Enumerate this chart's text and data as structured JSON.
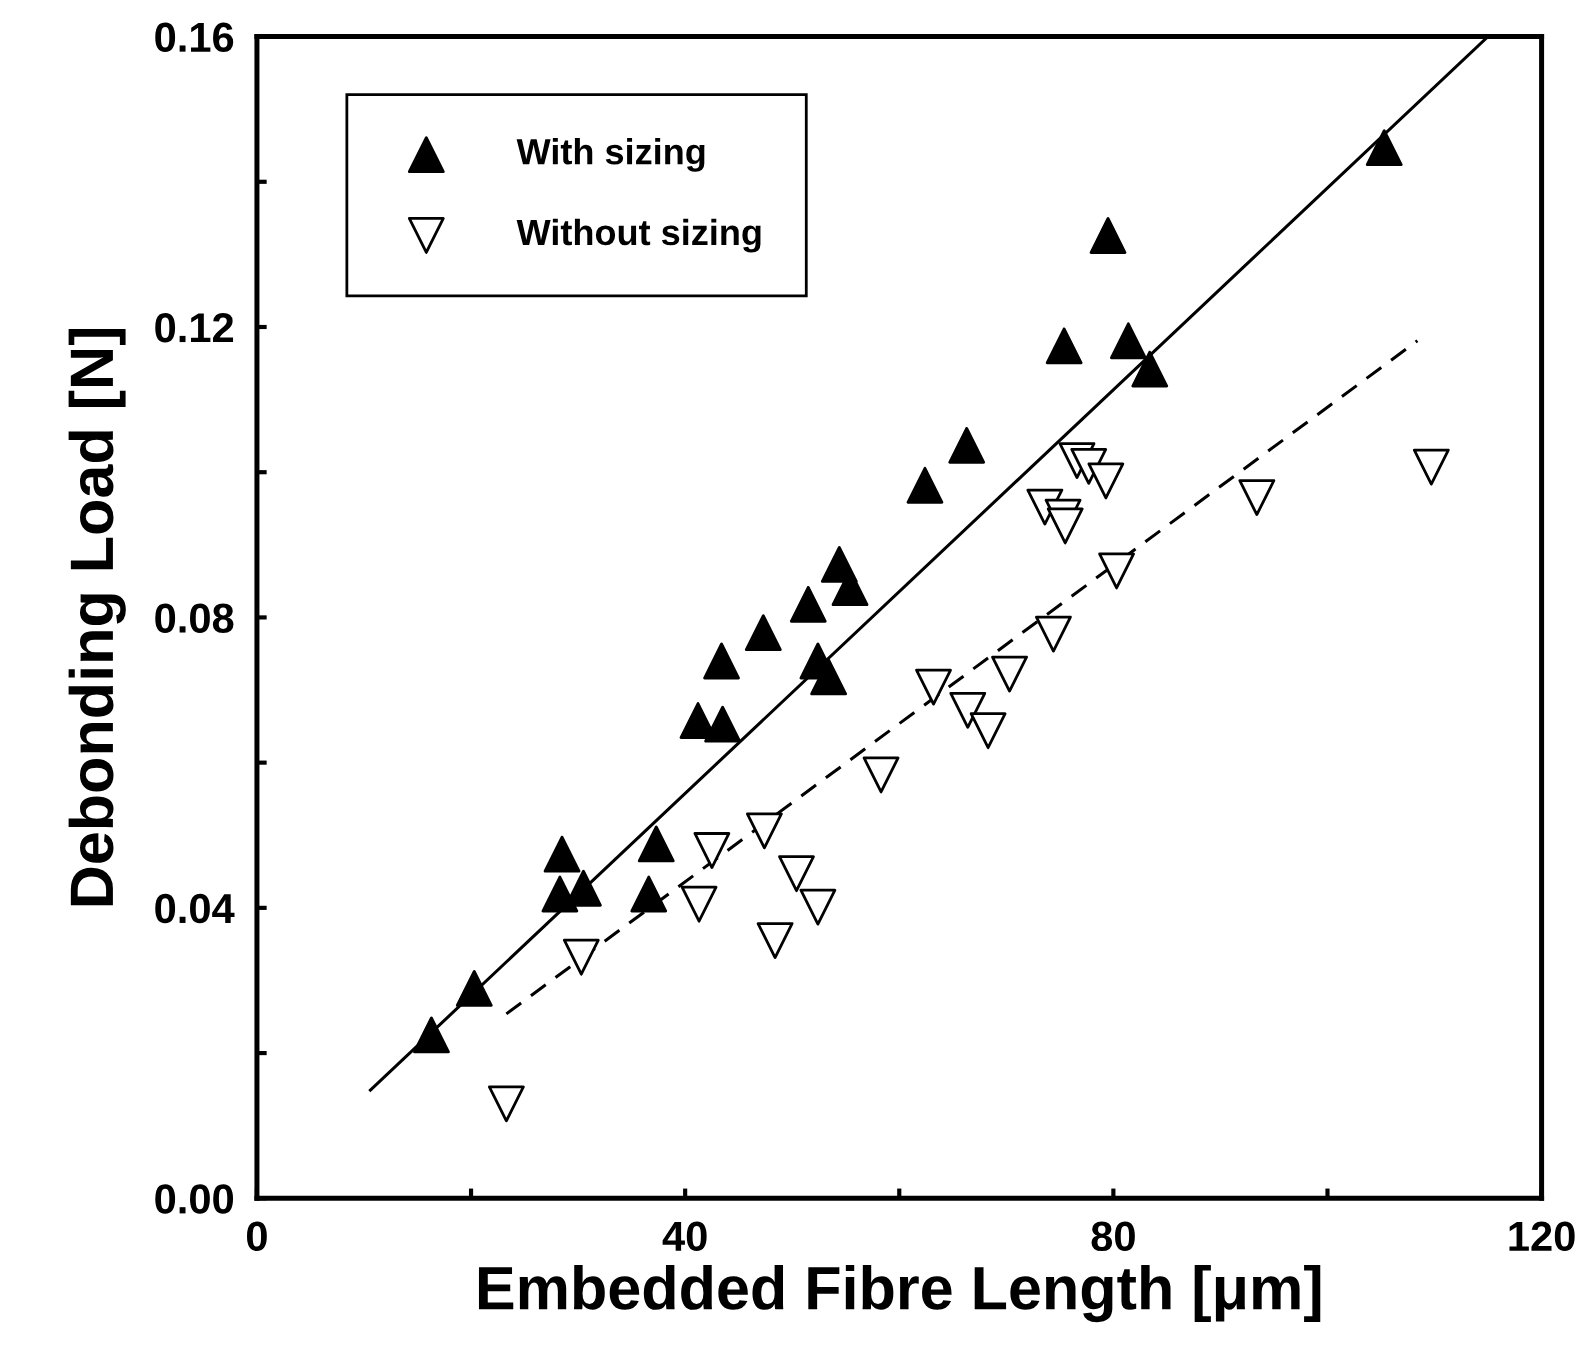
{
  "chart_data": {
    "type": "scatter",
    "xlabel": "Embedded Fibre Length [μm]",
    "ylabel": "Debonding Load [N]",
    "xlim": [
      0,
      120
    ],
    "ylim": [
      0,
      0.16
    ],
    "xticks": [
      0,
      {
        "value": 20,
        "label": null
      },
      40,
      {
        "value": 60,
        "label": null
      },
      80,
      {
        "value": 100,
        "label": null
      },
      120
    ],
    "yticks": [
      {
        "value": 0,
        "label": "0.00"
      },
      {
        "value": 0.02,
        "label": null
      },
      0.04,
      {
        "value": 0.06,
        "label": null
      },
      0.08,
      {
        "value": 0.1,
        "label": null
      },
      0.12,
      {
        "value": 0.14,
        "label": null
      },
      0.16
    ],
    "grid": false,
    "legend": "top left",
    "series": [
      {
        "name": "With sizing",
        "color": "#000000",
        "marker": "triangle",
        "x": [
          16.3,
          20.3,
          28.5,
          28.3,
          30.5,
          36.6,
          37.3,
          41.2,
          43.4,
          43.5,
          47.3,
          51.5,
          52.4,
          53.4,
          54.4,
          55.4,
          62.4,
          66.3,
          75.4,
          79.5,
          81.4,
          83.4,
          105.3
        ],
        "values": [
          0.0225,
          0.0289,
          0.0474,
          0.0419,
          0.0427,
          0.0419,
          0.0488,
          0.0658,
          0.074,
          0.0653,
          0.0779,
          0.0818,
          0.074,
          0.0718,
          0.0873,
          0.0841,
          0.0982,
          0.1037,
          0.1174,
          0.1326,
          0.1181,
          0.1142,
          0.1447
        ]
      },
      {
        "name": "Without sizing",
        "color": "#000000",
        "marker": "triangle_down",
        "x": [
          23.3,
          30.3,
          41.3,
          42.5,
          47.4,
          50.4,
          48.4,
          52.4,
          58.3,
          63.2,
          66.4,
          68.3,
          70.3,
          74.4,
          80.3,
          73.6,
          75.3,
          75.5,
          76.6,
          77.7,
          79.3,
          93.4,
          109.7
        ],
        "values": [
          0.013,
          0.0332,
          0.0405,
          0.0479,
          0.0506,
          0.0447,
          0.0355,
          0.0401,
          0.0583,
          0.0704,
          0.0672,
          0.0644,
          0.0722,
          0.0777,
          0.0864,
          0.0952,
          0.0938,
          0.0926,
          0.1016,
          0.1008,
          0.0988,
          0.0965,
          0.1007
        ]
      },
      {
        "type": "line",
        "color": "#000000",
        "line_style": "solid",
        "x": [
          10.6,
          115
        ],
        "values": [
          0.0149,
          0.16
        ]
      },
      {
        "type": "line",
        "color": "#000000",
        "line_style": "dashed",
        "x": [
          23.3,
          108.4
        ],
        "values": [
          0.0254,
          0.1181
        ]
      }
    ]
  }
}
